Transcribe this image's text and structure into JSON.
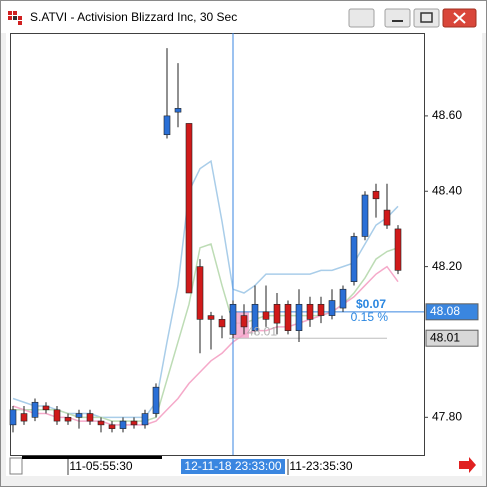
{
  "window_title": "S.ATVI - Activision Blizzard Inc, 30 Sec",
  "chart_data": {
    "type": "candlestick",
    "x": [
      null,
      null,
      null,
      null,
      null,
      null,
      null,
      null,
      "11-05:55:30",
      null,
      null,
      null,
      null,
      null,
      null,
      null,
      null,
      null,
      null,
      null,
      "12-11-18 23:33:00",
      null,
      null,
      null,
      null,
      null,
      null,
      null,
      "11-23:35:30",
      null,
      null,
      null,
      null,
      null,
      null,
      null
    ],
    "open": [
      47.78,
      47.81,
      47.8,
      47.83,
      47.82,
      47.8,
      47.8,
      47.81,
      47.79,
      47.78,
      47.77,
      47.79,
      47.78,
      47.81,
      48.55,
      48.61,
      48.58,
      48.2,
      48.07,
      48.06,
      48.02,
      48.07,
      48.03,
      48.08,
      48.1,
      48.1,
      48.03,
      48.1,
      48.1,
      48.07,
      48.09,
      48.16,
      48.28,
      48.4,
      48.35,
      48.3
    ],
    "high": [
      47.83,
      47.83,
      47.85,
      47.84,
      47.83,
      47.81,
      47.82,
      47.82,
      47.8,
      47.79,
      47.8,
      47.8,
      47.82,
      47.89,
      48.78,
      48.74,
      48.58,
      48.22,
      48.08,
      48.07,
      48.11,
      48.1,
      48.15,
      48.15,
      48.13,
      48.11,
      48.14,
      48.12,
      48.12,
      48.14,
      48.15,
      48.29,
      48.4,
      48.42,
      48.42,
      48.31
    ],
    "low": [
      47.76,
      47.78,
      47.79,
      47.81,
      47.78,
      47.78,
      47.77,
      47.78,
      47.76,
      47.76,
      47.76,
      47.77,
      47.77,
      47.8,
      48.54,
      48.57,
      48.13,
      47.97,
      47.98,
      48.01,
      48.01,
      48.02,
      48.02,
      48.04,
      48.02,
      48.02,
      48.0,
      48.04,
      48.05,
      48.06,
      48.08,
      48.15,
      48.27,
      48.33,
      48.3,
      48.18
    ],
    "close": [
      47.82,
      47.79,
      47.84,
      47.82,
      47.79,
      47.79,
      47.81,
      47.79,
      47.78,
      47.77,
      47.79,
      47.78,
      47.81,
      47.88,
      48.6,
      48.62,
      48.13,
      48.06,
      48.06,
      48.04,
      48.1,
      48.04,
      48.1,
      48.06,
      48.05,
      48.03,
      48.1,
      48.06,
      48.07,
      48.11,
      48.14,
      48.28,
      48.39,
      48.38,
      48.31,
      48.19
    ],
    "up_color": "#2a6fd6",
    "down_color": "#d01a1a",
    "overlays": [
      {
        "color": "#a9cde9",
        "values": [
          47.85,
          47.84,
          47.83,
          47.83,
          47.82,
          47.81,
          47.81,
          47.81,
          47.8,
          47.8,
          47.8,
          47.8,
          47.8,
          47.84,
          48.0,
          48.15,
          48.4,
          48.46,
          48.48,
          48.32,
          48.14,
          48.13,
          48.15,
          48.18,
          48.18,
          48.18,
          48.18,
          48.18,
          48.19,
          48.19,
          48.2,
          48.21,
          48.26,
          48.31,
          48.33,
          48.36
        ]
      },
      {
        "color": "#bddcb5",
        "values": [
          47.82,
          47.82,
          47.82,
          47.82,
          47.82,
          47.81,
          47.8,
          47.8,
          47.8,
          47.79,
          47.79,
          47.79,
          47.79,
          47.8,
          47.9,
          48.0,
          48.1,
          48.25,
          48.26,
          48.15,
          48.05,
          48.05,
          48.06,
          48.07,
          48.07,
          48.07,
          48.07,
          48.07,
          48.07,
          48.08,
          48.1,
          48.13,
          48.17,
          48.22,
          48.24,
          48.25
        ]
      },
      {
        "color": "#f5a9c9",
        "values": [
          47.83,
          47.82,
          47.81,
          47.81,
          47.8,
          47.8,
          47.79,
          47.79,
          47.79,
          47.78,
          47.78,
          47.78,
          47.78,
          47.79,
          47.82,
          47.85,
          47.89,
          47.92,
          47.95,
          47.97,
          48.0,
          48.02,
          48.03,
          48.03,
          48.04,
          48.04,
          48.05,
          48.06,
          48.07,
          48.08,
          48.1,
          48.12,
          48.15,
          48.18,
          48.2,
          48.16
        ]
      }
    ],
    "ylim": [
      47.7,
      48.82
    ],
    "yticks": [
      {
        "value": 48.6,
        "label": "48.60"
      },
      {
        "value": 48.4,
        "label": "48.40"
      },
      {
        "value": 48.2,
        "label": "48.20"
      },
      {
        "value": 47.8,
        "label": "47.80"
      }
    ],
    "price_markers": [
      {
        "value": 48.08,
        "color": "#3a86e0"
      },
      {
        "value": 48.01,
        "color": "#bdbdbd"
      }
    ],
    "crosshair_index": 20,
    "measure": {
      "change": "$0.07",
      "percent": "0.15 %",
      "start_label": "48.01"
    }
  }
}
